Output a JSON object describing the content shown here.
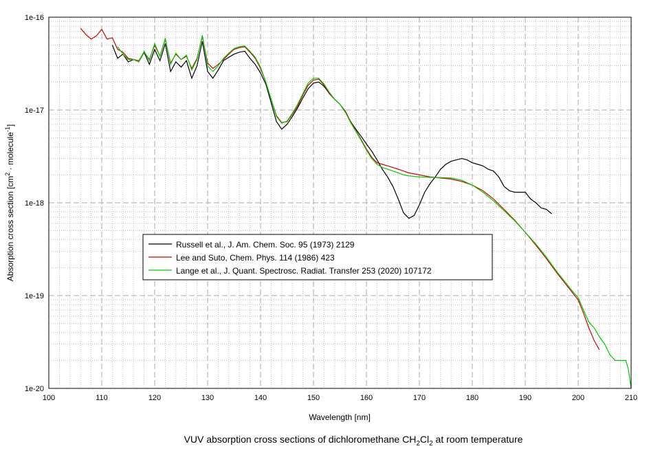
{
  "chart_data": {
    "type": "line",
    "title": [
      "VUV absorption cross sections of dichloromethane CH",
      "2",
      "Cl",
      "2",
      " at room temperature"
    ],
    "x_label": "Wavelength [nm]",
    "y_label": [
      "Absorption cross section [cm",
      "2",
      " · molecule",
      "-1",
      "]"
    ],
    "xlim": [
      100,
      210
    ],
    "xticks": [
      100,
      110,
      120,
      130,
      140,
      150,
      160,
      170,
      180,
      190,
      200,
      210
    ],
    "xminorticks": [
      102,
      104,
      106,
      108,
      112,
      114,
      116,
      118,
      122,
      124,
      126,
      128,
      132,
      134,
      136,
      138,
      142,
      144,
      146,
      148,
      152,
      154,
      156,
      158,
      162,
      164,
      166,
      168,
      172,
      174,
      176,
      178,
      182,
      184,
      186,
      188,
      192,
      194,
      196,
      198,
      202,
      204,
      206,
      208
    ],
    "ylim": [
      1e-20,
      1e-16
    ],
    "log_y": true,
    "grid": true,
    "yticks": [
      {
        "value": 1e-20,
        "label": "1e-20"
      },
      {
        "value": 1e-19,
        "label": "1e-19"
      },
      {
        "value": 1e-18,
        "label": "1e-18"
      },
      {
        "value": 1e-17,
        "label": "1e-17"
      },
      {
        "value": 1e-16,
        "label": "1e-16"
      }
    ],
    "yminorticks": [
      2e-20,
      3e-20,
      4e-20,
      5e-20,
      6e-20,
      7e-20,
      8e-20,
      9e-20,
      2e-19,
      3e-19,
      4e-19,
      5e-19,
      6e-19,
      7e-19,
      8e-19,
      9e-19,
      2e-18,
      3e-18,
      4e-18,
      5e-18,
      6e-18,
      7e-18,
      8e-18,
      9e-18,
      2e-17,
      3e-17,
      4e-17,
      5e-17,
      6e-17,
      7e-17,
      8e-17,
      9e-17
    ],
    "series": [
      {
        "name": "Russell et al., J. Am. Chem. Soc. 95 (1973) 2129",
        "color": "#000000",
        "x": [
          112,
          113,
          114,
          115,
          116,
          117,
          118,
          119,
          120,
          121,
          122,
          123,
          124,
          125,
          126,
          127,
          128,
          129,
          130,
          131,
          132,
          133,
          134,
          135,
          136,
          137,
          138,
          139,
          140,
          141,
          142,
          143,
          144,
          145,
          146,
          147,
          148,
          149,
          150,
          151,
          152,
          153,
          154,
          155,
          156,
          157,
          158,
          159,
          160,
          161,
          162,
          163,
          164,
          165,
          166,
          167,
          168,
          169,
          170,
          171,
          172,
          173,
          174,
          175,
          176,
          177,
          178,
          179,
          180,
          181,
          182,
          183,
          184,
          185,
          186,
          187,
          188,
          189,
          190,
          191,
          192,
          193,
          194,
          195
        ],
        "values": [
          5e-17,
          3.6e-17,
          4e-17,
          3.3e-17,
          3.5e-17,
          3.3e-17,
          4.2e-17,
          3.1e-17,
          4.5e-17,
          3.4e-17,
          5.2e-17,
          2.6e-17,
          3.3e-17,
          2.9e-17,
          3.4e-17,
          2.2e-17,
          3e-17,
          5.5e-17,
          2.6e-17,
          2.2e-17,
          2.7e-17,
          3.4e-17,
          3.7e-17,
          4e-17,
          4.2e-17,
          4.3e-17,
          3.6e-17,
          3.1e-17,
          2.5e-17,
          1.9e-17,
          1.2e-17,
          7.5e-18,
          6.2e-18,
          7e-18,
          8.5e-18,
          1.05e-17,
          1.35e-17,
          1.7e-17,
          1.95e-17,
          2e-17,
          1.8e-17,
          1.5e-17,
          1.3e-17,
          1.15e-17,
          9.5e-18,
          7.5e-18,
          6.2e-18,
          5.2e-18,
          4.3e-18,
          3.6e-18,
          2.9e-18,
          2.3e-18,
          1.9e-18,
          1.5e-18,
          1.1e-18,
          7.8e-19,
          6.8e-19,
          7.3e-19,
          9.5e-19,
          1.3e-18,
          1.6e-18,
          1.9e-18,
          2.3e-18,
          2.6e-18,
          2.8e-18,
          2.9e-18,
          3e-18,
          2.9e-18,
          2.7e-18,
          2.6e-18,
          2.5e-18,
          2.3e-18,
          2.2e-18,
          1.9e-18,
          1.5e-18,
          1.35e-18,
          1.3e-18,
          1.3e-18,
          1.3e-18,
          1.1e-18,
          1e-18,
          8.8e-19,
          8.5e-19,
          7.6e-19
        ]
      },
      {
        "name": "Lee and Suto, Chem. Phys. 114 (1986) 423",
        "color": "#cc0000",
        "x": [
          106,
          107,
          108,
          109,
          110,
          111,
          112,
          113,
          114,
          115,
          116,
          117,
          118,
          119,
          120,
          121,
          122,
          123,
          124,
          125,
          126,
          127,
          128,
          129,
          130,
          131,
          132,
          133,
          134,
          135,
          136,
          137,
          138,
          139,
          140,
          141,
          142,
          143,
          144,
          145,
          146,
          147,
          148,
          149,
          150,
          151,
          152,
          153,
          154,
          155,
          156,
          157,
          158,
          159,
          160,
          161,
          162,
          163,
          164,
          165,
          166,
          167,
          168,
          169,
          170,
          172,
          174,
          176,
          178,
          180,
          182,
          184,
          186,
          188,
          190,
          192,
          194,
          196,
          198,
          200,
          201,
          202,
          203,
          204
        ],
        "values": [
          7.6e-17,
          6.5e-17,
          5.8e-17,
          6.3e-17,
          7.4e-17,
          5.8e-17,
          6e-17,
          4.5e-17,
          4.2e-17,
          3.6e-17,
          3.5e-17,
          3.4e-17,
          4.2e-17,
          3.5e-17,
          5e-17,
          3.8e-17,
          5.8e-17,
          3.2e-17,
          4e-17,
          3.5e-17,
          3.8e-17,
          2.8e-17,
          3.6e-17,
          6.2e-17,
          3.2e-17,
          2.8e-17,
          3.1e-17,
          3.5e-17,
          4e-17,
          4.5e-17,
          4.7e-17,
          4.8e-17,
          4.2e-17,
          3.6e-17,
          2.8e-17,
          2e-17,
          1.3e-17,
          8.7e-18,
          7.3e-18,
          7.5e-18,
          9e-18,
          1.1e-17,
          1.45e-17,
          1.85e-17,
          2.1e-17,
          2.15e-17,
          1.85e-17,
          1.5e-17,
          1.3e-17,
          1.15e-17,
          9.8e-18,
          7.5e-18,
          6e-18,
          4.8e-18,
          3.8e-18,
          3.1e-18,
          2.7e-18,
          2.6e-18,
          2.5e-18,
          2.4e-18,
          2.3e-18,
          2.2e-18,
          2.1e-18,
          2.05e-18,
          2e-18,
          1.9e-18,
          1.85e-18,
          1.8e-18,
          1.7e-18,
          1.55e-18,
          1.35e-18,
          1.1e-18,
          8.5e-19,
          6.5e-19,
          4.8e-19,
          3.5e-19,
          2.5e-19,
          1.75e-19,
          1.25e-19,
          9e-20,
          6.5e-20,
          4.5e-20,
          3.3e-20,
          2.6e-20
        ]
      },
      {
        "name": "Lange et al., J. Quant. Spectrosc. Radiat. Transfer 253 (2020) 107172",
        "color": "#00cc00",
        "x": [
          113,
          114,
          115,
          116,
          117,
          118,
          119,
          120,
          121,
          122,
          123,
          124,
          125,
          126,
          127,
          128,
          129,
          130,
          131,
          132,
          133,
          134,
          135,
          136,
          137,
          138,
          139,
          140,
          141,
          142,
          143,
          144,
          145,
          146,
          147,
          148,
          149,
          150,
          151,
          152,
          153,
          154,
          155,
          156,
          157,
          158,
          159,
          160,
          161,
          162,
          163,
          164,
          165,
          166,
          167,
          168,
          170,
          172,
          174,
          176,
          178,
          180,
          182,
          184,
          186,
          188,
          190,
          192,
          194,
          196,
          198,
          199,
          200,
          201,
          202,
          203,
          204,
          205,
          206,
          207,
          208,
          209,
          209.5,
          210
        ],
        "values": [
          4.8e-17,
          4e-17,
          3.5e-17,
          3.5e-17,
          3.3e-17,
          4.3e-17,
          3.4e-17,
          5.2e-17,
          3.8e-17,
          5.9e-17,
          3.1e-17,
          4.1e-17,
          3.5e-17,
          3.9e-17,
          2.7e-17,
          3.5e-17,
          6.4e-17,
          3e-17,
          2.6e-17,
          3e-17,
          3.6e-17,
          4.1e-17,
          4.6e-17,
          4.8e-17,
          4.9e-17,
          4.3e-17,
          3.7e-17,
          2.9e-17,
          2e-17,
          1.3e-17,
          8.5e-18,
          7.2e-18,
          7.6e-18,
          9.2e-18,
          1.15e-17,
          1.5e-17,
          1.95e-17,
          2.2e-17,
          2.2e-17,
          1.9e-17,
          1.55e-17,
          1.3e-17,
          1.15e-17,
          9.6e-18,
          7.3e-18,
          5.9e-18,
          4.7e-18,
          3.7e-18,
          3e-18,
          2.6e-18,
          2.4e-18,
          2.3e-18,
          2.2e-18,
          2.1e-18,
          2e-18,
          1.95e-18,
          1.9e-18,
          1.88e-18,
          1.87e-18,
          1.85e-18,
          1.75e-18,
          1.55e-18,
          1.3e-18,
          1.05e-18,
          8.2e-19,
          6.4e-19,
          4.8e-19,
          3.6e-19,
          2.6e-19,
          1.8e-19,
          1.3e-19,
          1.1e-19,
          9.5e-20,
          7e-20,
          5.2e-20,
          4.5e-20,
          3.6e-20,
          3e-20,
          2.3e-20,
          2e-20,
          2e-20,
          2e-20,
          1.6e-20,
          1e-20
        ]
      }
    ]
  }
}
